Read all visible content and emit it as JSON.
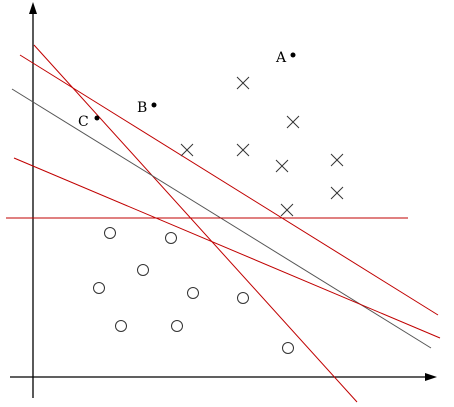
{
  "labeled_points": [
    {
      "label": "A"
    },
    {
      "label": "B"
    },
    {
      "label": "C"
    }
  ]
}
